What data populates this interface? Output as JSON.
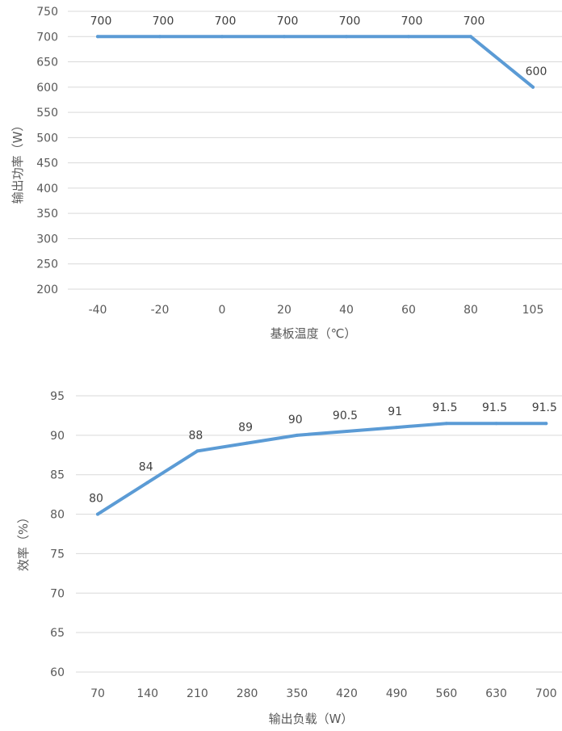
{
  "chart_data": [
    {
      "type": "line",
      "title": "",
      "xlabel": "基板温度（℃）",
      "ylabel": "输出功率（W）",
      "categories": [
        "-40",
        "-20",
        "0",
        "20",
        "40",
        "60",
        "80",
        "105"
      ],
      "series": [
        {
          "values": [
            700,
            700,
            700,
            700,
            700,
            700,
            700,
            600
          ],
          "color": "#5b9bd5"
        }
      ],
      "ylim": [
        200,
        750
      ],
      "yticks": [
        200,
        250,
        300,
        350,
        400,
        450,
        500,
        550,
        600,
        650,
        700,
        750
      ],
      "data_labels": [
        "700",
        "700",
        "700",
        "700",
        "700",
        "700",
        "700",
        "600"
      ],
      "grid": true,
      "legend": "none"
    },
    {
      "type": "line",
      "title": "",
      "xlabel": "输出负载（W）",
      "ylabel": "效率（%）",
      "categories": [
        "70",
        "140",
        "210",
        "280",
        "350",
        "420",
        "490",
        "560",
        "630",
        "700"
      ],
      "series": [
        {
          "values": [
            80,
            84,
            88,
            89,
            90,
            90.5,
            91,
            91.5,
            91.5,
            91.5
          ],
          "color": "#5b9bd5"
        }
      ],
      "ylim": [
        60,
        95
      ],
      "yticks": [
        60,
        65,
        70,
        75,
        80,
        85,
        90,
        95
      ],
      "data_labels": [
        "80",
        "84",
        "88",
        "89",
        "90",
        "90.5",
        "91",
        "91.5",
        "91.5",
        "91.5"
      ],
      "grid": true,
      "legend": "none"
    }
  ]
}
